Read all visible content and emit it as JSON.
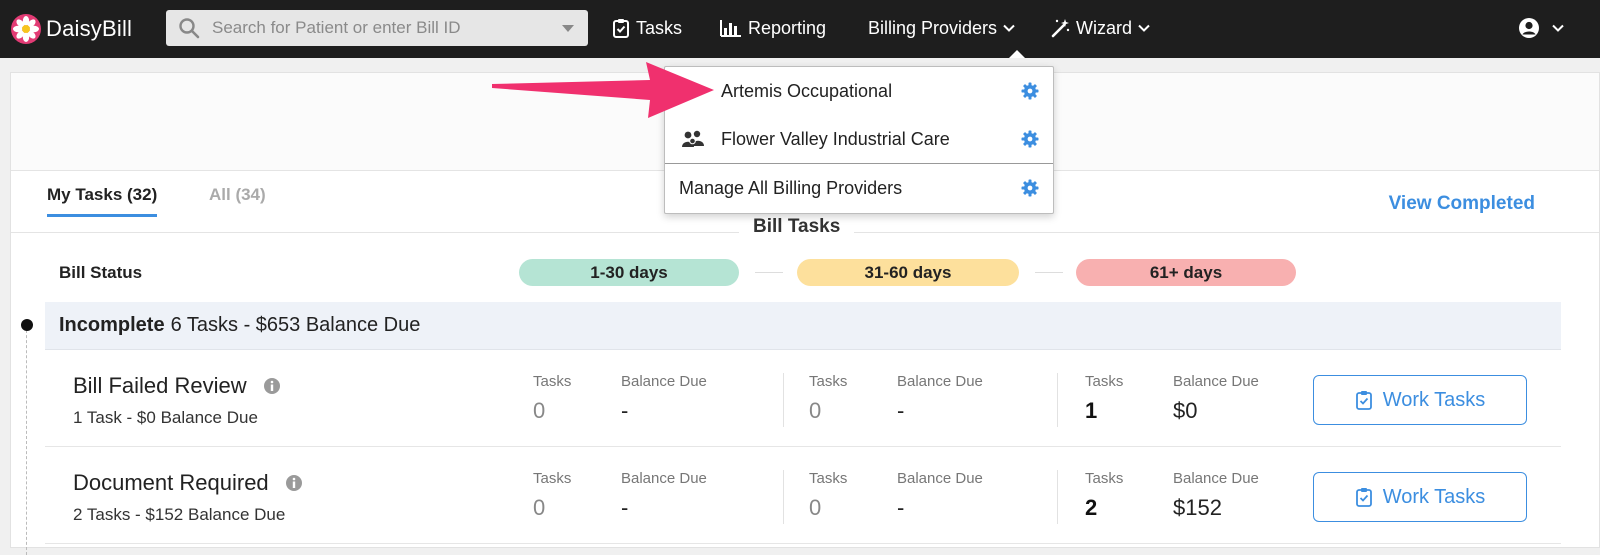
{
  "navbar": {
    "brand": "DaisyBill",
    "search_placeholder": "Search for Patient or enter Bill ID",
    "items": [
      {
        "label": "Tasks",
        "icon": "clipboard-check-icon"
      },
      {
        "label": "Reporting",
        "icon": "bar-chart-icon"
      },
      {
        "label": "Billing Providers",
        "icon": "chevron-down-icon"
      },
      {
        "label": "Wizard",
        "icon": "magic-wand-icon"
      }
    ],
    "user_icon": "user-circle-icon"
  },
  "dropdown": {
    "items": [
      {
        "label": "Artemis Occupational",
        "icon": "gear-icon"
      },
      {
        "label": "Flower Valley Industrial Care",
        "icon": "group-icon"
      },
      {
        "label": "Manage All Billing Providers",
        "icon": "gear-icon"
      }
    ]
  },
  "tabs": {
    "my_tasks": "My Tasks (32)",
    "all": "All (34)",
    "view_completed": "View Completed"
  },
  "bill_tasks": {
    "title": "Bill Tasks",
    "status_label": "Bill Status",
    "buckets": [
      "1-30 days",
      "31-60 days",
      "61+ days"
    ],
    "colors": {
      "green": "#b5e4d4",
      "yellow": "#fde09c",
      "red": "#f8b0b0",
      "accent": "#3c8ee0"
    }
  },
  "group": {
    "name": "Incomplete",
    "summary": "6 Tasks - $653 Balance Due"
  },
  "rows": [
    {
      "title": "Bill Failed Review",
      "subtitle": "1 Task - $0 Balance Due",
      "tasks_label": "Tasks",
      "balance_label": "Balance Due",
      "b1_tasks": "0",
      "b1_balance": "-",
      "b2_tasks": "0",
      "b2_balance": "-",
      "b3_tasks": "1",
      "b3_balance": "$0",
      "button": "Work Tasks"
    },
    {
      "title": "Document Required",
      "subtitle": "2 Tasks - $152 Balance Due",
      "tasks_label": "Tasks",
      "balance_label": "Balance Due",
      "b1_tasks": "0",
      "b1_balance": "-",
      "b2_tasks": "0",
      "b2_balance": "-",
      "b3_tasks": "2",
      "b3_balance": "$152",
      "button": "Work Tasks"
    }
  ]
}
